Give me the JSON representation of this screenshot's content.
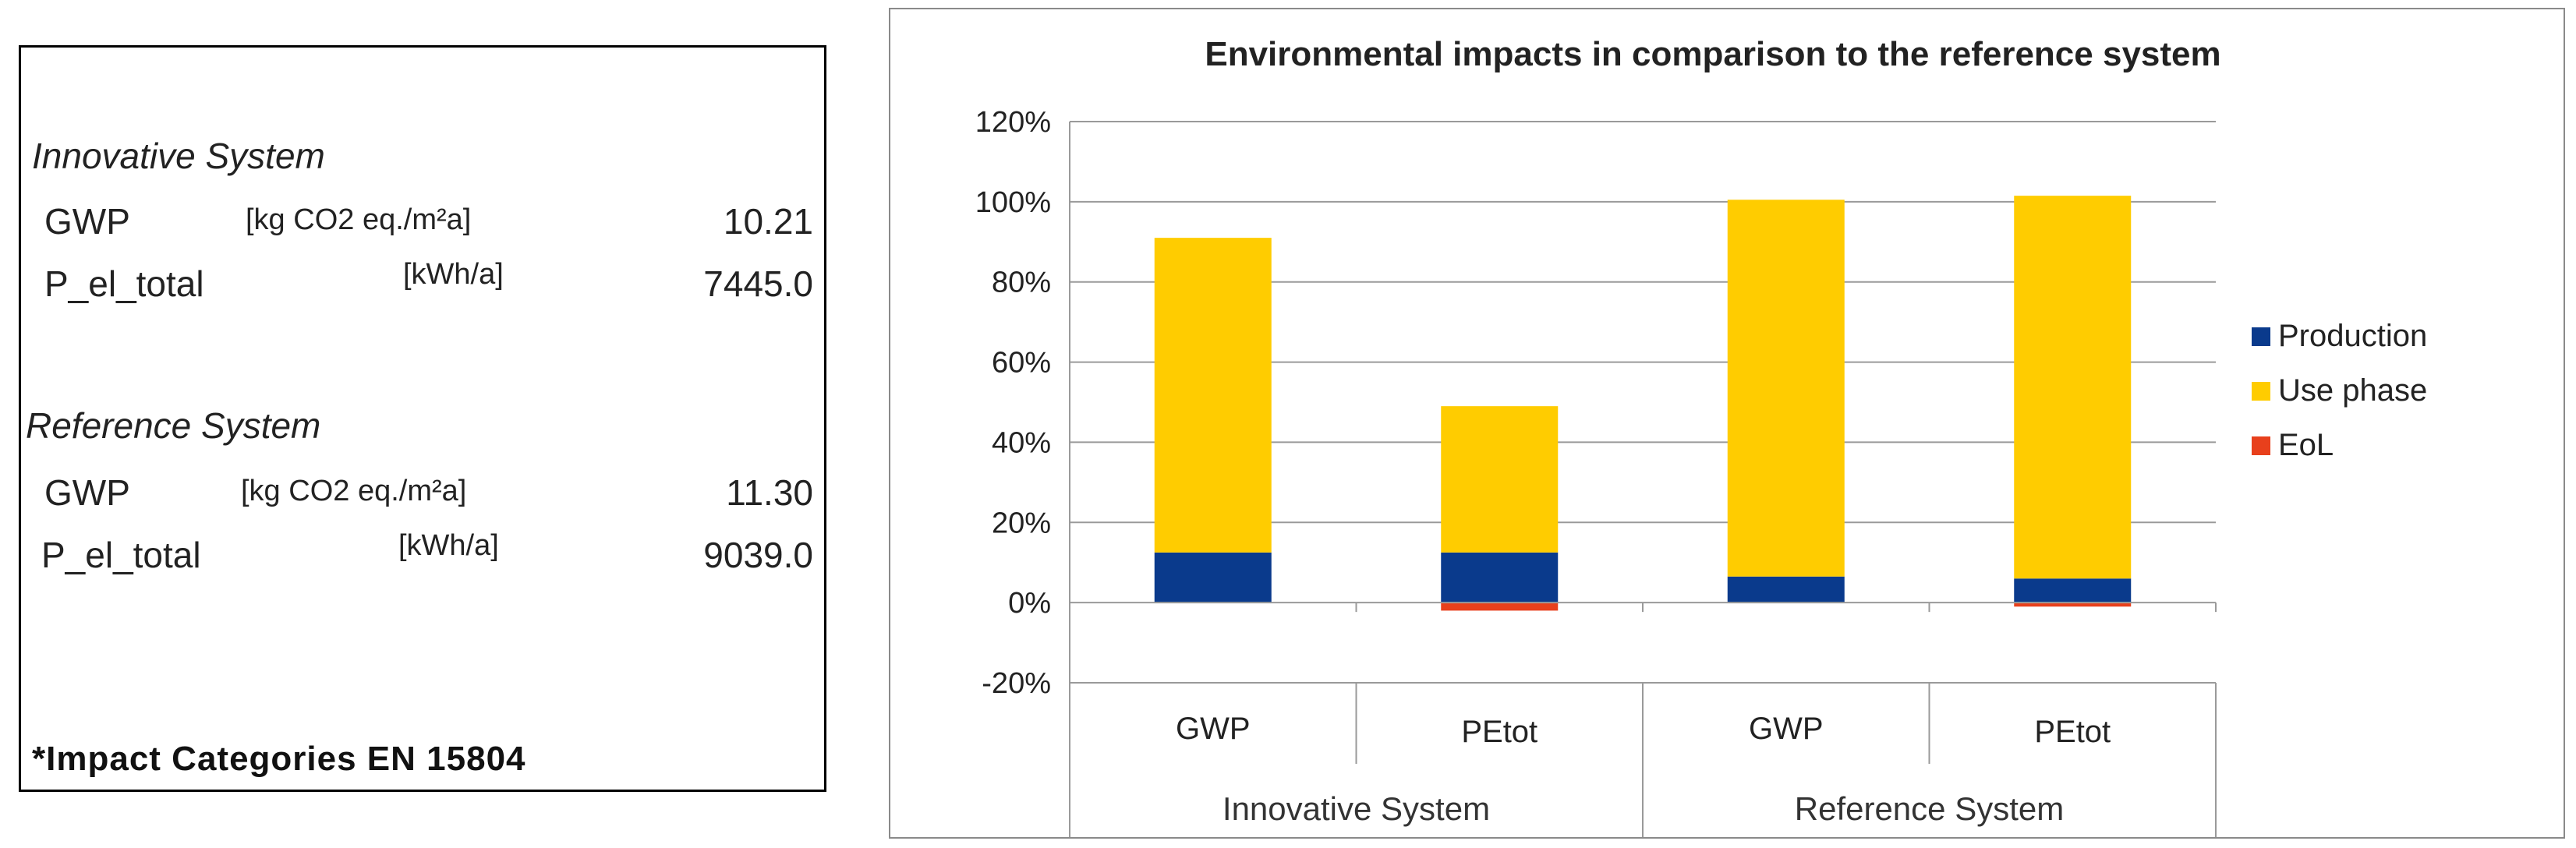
{
  "info_panel": {
    "innovative": {
      "title": "Innovative System",
      "rows": [
        {
          "label": "GWP",
          "unit": "[kg CO2 eq./m²a]",
          "value": "10.21"
        },
        {
          "label": "P_el_total",
          "unit": "[kWh/a]",
          "value": "7445.0"
        }
      ]
    },
    "reference": {
      "title": "Reference System",
      "rows": [
        {
          "label": "GWP",
          "unit": "[kg CO2 eq./m²a]",
          "value": "11.30"
        },
        {
          "label": "P_el_total",
          "unit": "[kWh/a]",
          "value": "9039.0"
        }
      ]
    },
    "footnote": "*Impact Categories EN 15804"
  },
  "chart_data": {
    "type": "bar",
    "stacked": true,
    "title": "Environmental impacts in comparison to the reference system",
    "categories": [
      "GWP",
      "PEtot",
      "GWP",
      "PEtot"
    ],
    "groups": [
      {
        "label": "Innovative System",
        "span": [
          0,
          1
        ]
      },
      {
        "label": "Reference System",
        "span": [
          2,
          3
        ]
      }
    ],
    "series": [
      {
        "name": "Production",
        "color": "#0a3a8c",
        "values": [
          12.5,
          12.5,
          6.5,
          6
        ]
      },
      {
        "name": "Use phase",
        "color": "#ffcc00",
        "values": [
          78.5,
          36.5,
          94,
          95.5
        ]
      },
      {
        "name": "EoL",
        "color": "#e8401c",
        "values": [
          0,
          -2,
          0,
          -1
        ]
      }
    ],
    "ylim": [
      -20,
      120
    ],
    "yticks": [
      -20,
      0,
      20,
      40,
      60,
      80,
      100,
      120
    ],
    "ytick_labels": [
      "-20%",
      "0%",
      "20%",
      "40%",
      "60%",
      "80%",
      "100%",
      "120%"
    ],
    "grid": true,
    "legend": "right",
    "xlabel": "",
    "ylabel": ""
  }
}
